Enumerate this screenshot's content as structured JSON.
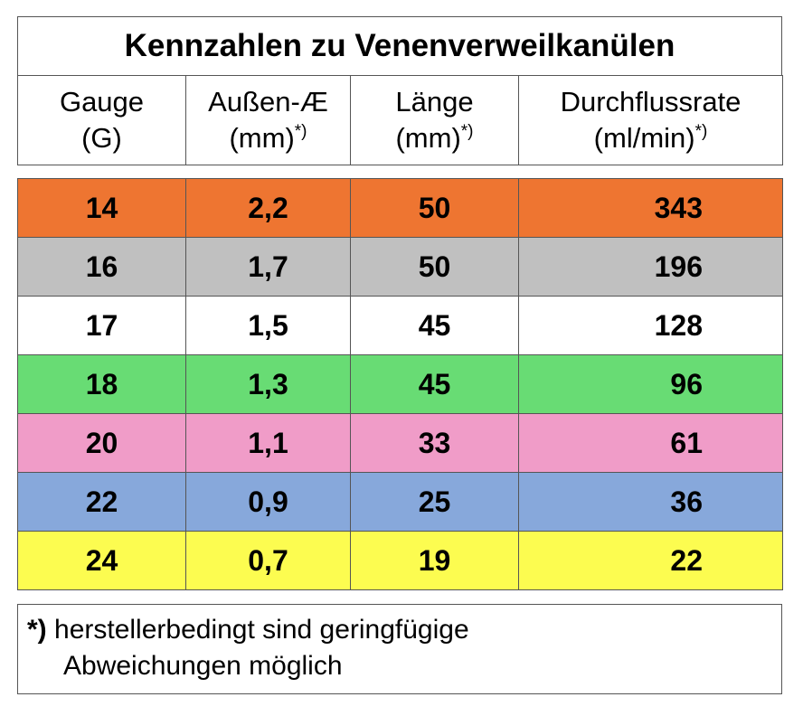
{
  "title": "Kennzahlen zu Venenverweilkanülen",
  "header": [
    {
      "line1": "Gauge",
      "line2": "(G)",
      "sup": ""
    },
    {
      "line1": "Außen-Æ",
      "line2": "(mm)",
      "sup": "*)"
    },
    {
      "line1": "Länge",
      "line2": "(mm)",
      "sup": "*)"
    },
    {
      "line1": "Durchflussrate",
      "line2": "(ml/min)",
      "sup": "*)"
    }
  ],
  "rows": [
    {
      "gauge": "14",
      "diameter": "2,2",
      "length": "50",
      "flow": "343",
      "color": "#ee7531"
    },
    {
      "gauge": "16",
      "diameter": "1,7",
      "length": "50",
      "flow": "196",
      "color": "#c0c0c0"
    },
    {
      "gauge": "17",
      "diameter": "1,5",
      "length": "45",
      "flow": "128",
      "color": "#ffffff"
    },
    {
      "gauge": "18",
      "diameter": "1,3",
      "length": "45",
      "flow": "96",
      "color": "#68dc74"
    },
    {
      "gauge": "20",
      "diameter": "1,1",
      "length": "33",
      "flow": "61",
      "color": "#f09cc8"
    },
    {
      "gauge": "22",
      "diameter": "0,9",
      "length": "25",
      "flow": "36",
      "color": "#87a8db"
    },
    {
      "gauge": "24",
      "diameter": "0,7",
      "length": "19",
      "flow": "22",
      "color": "#fcfc50"
    }
  ],
  "footnote": {
    "mark": "*)",
    "line1": " herstellerbedingt sind geringfügige",
    "line2": "Abweichungen möglich"
  }
}
